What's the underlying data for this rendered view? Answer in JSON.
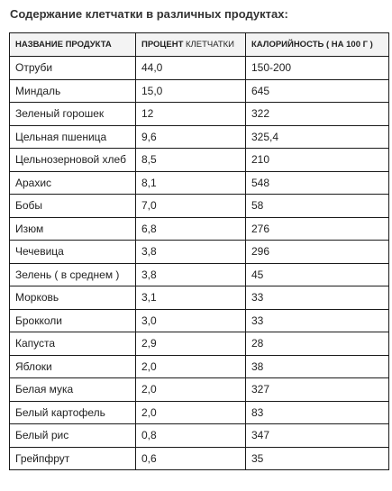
{
  "title": "Содержание клетчатки в различных продуктах:",
  "table": {
    "headers": {
      "product": "НАЗВАНИЕ ПРОДУКТА",
      "fiber_bold": "ПРОЦЕНТ",
      "fiber_rest": " КЛЕТЧАТКИ",
      "calories": "КАЛОРИЙНОСТЬ ( НА 100 Г )"
    },
    "rows": [
      {
        "product": "Отруби",
        "fiber": "44,0",
        "calories": "150-200"
      },
      {
        "product": "Миндаль",
        "fiber": "15,0",
        "calories": "645"
      },
      {
        "product": "Зеленый горошек",
        "fiber": "12",
        "calories": "322"
      },
      {
        "product": "Цельная пшеница",
        "fiber": "9,6",
        "calories": "325,4"
      },
      {
        "product": "Цельнозерновой хлеб",
        "fiber": "8,5",
        "calories": "210"
      },
      {
        "product": "Арахис",
        "fiber": "8,1",
        "calories": "548"
      },
      {
        "product": "Бобы",
        "fiber": "7,0",
        "calories": "58"
      },
      {
        "product": "Изюм",
        "fiber": "6,8",
        "calories": "276"
      },
      {
        "product": "Чечевица",
        "fiber": "3,8",
        "calories": "296"
      },
      {
        "product": "Зелень ( в среднем )",
        "fiber": "3,8",
        "calories": "45"
      },
      {
        "product": "Морковь",
        "fiber": "3,1",
        "calories": "33"
      },
      {
        "product": "Брокколи",
        "fiber": "3,0",
        "calories": "33"
      },
      {
        "product": "Капуста",
        "fiber": "2,9",
        "calories": "28"
      },
      {
        "product": "Яблоки",
        "fiber": "2,0",
        "calories": "38"
      },
      {
        "product": "Белая мука",
        "fiber": "2,0",
        "calories": "327"
      },
      {
        "product": "Белый картофель",
        "fiber": "2,0",
        "calories": "83"
      },
      {
        "product": "Белый рис",
        "fiber": "0,8",
        "calories": "347"
      },
      {
        "product": "Грейпфрут",
        "fiber": "0,6",
        "calories": "35"
      }
    ]
  }
}
